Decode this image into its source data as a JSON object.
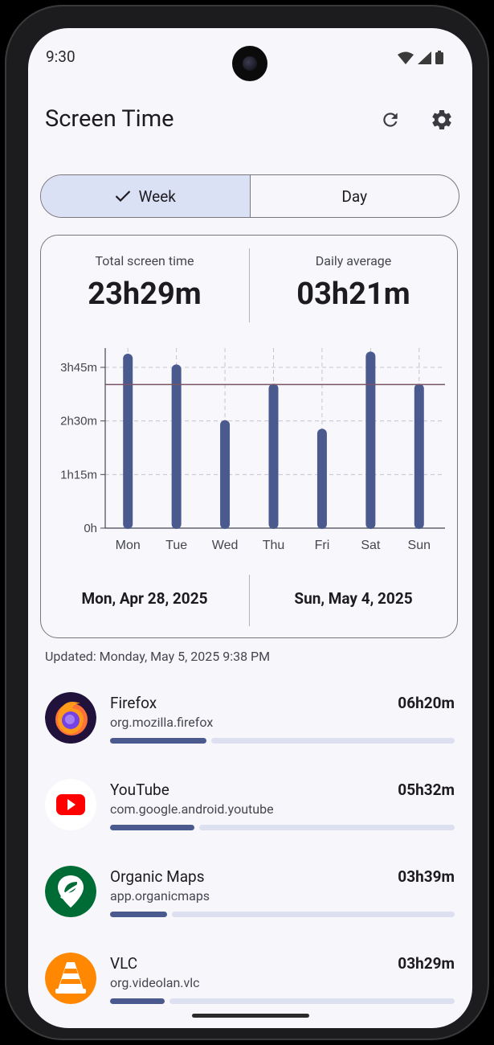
{
  "status": {
    "time": "9:30"
  },
  "appbar": {
    "title": "Screen Time",
    "refresh_icon": "refresh-icon",
    "settings_icon": "gear-icon"
  },
  "toggle": {
    "week_label": "Week",
    "day_label": "Day",
    "selected": "Week"
  },
  "summary": {
    "total_label": "Total screen time",
    "total_value": "23h29m",
    "avg_label": "Daily average",
    "avg_value": "03h21m",
    "start_date": "Mon, Apr 28, 2025",
    "end_date": "Sun, May 4, 2025"
  },
  "chart_data": {
    "type": "bar",
    "categories": [
      "Mon",
      "Tue",
      "Wed",
      "Thu",
      "Fri",
      "Sat",
      "Sun"
    ],
    "values": [
      4.05,
      3.8,
      2.5,
      3.35,
      2.3,
      4.1,
      3.35
    ],
    "average_line": 3.35,
    "ylim": [
      0,
      4.2
    ],
    "ytick_values": [
      0,
      1.25,
      2.5,
      3.75
    ],
    "ytick_labels": [
      "0h",
      "1h15m",
      "2h30m",
      "3h45m"
    ],
    "xlabel": "",
    "ylabel": "",
    "grid": true,
    "colors": {
      "bar": "#4a5a8f",
      "average_line": "#7a5563",
      "grid": "#c4c4cc"
    }
  },
  "updated_text": "Updated: Monday, May 5, 2025 9:38 PM",
  "apps": [
    {
      "name": "Firefox",
      "package": "org.mozilla.firefox",
      "time": "06h20m",
      "fraction": 0.28,
      "icon": "firefox-icon"
    },
    {
      "name": "YouTube",
      "package": "com.google.android.youtube",
      "time": "05h32m",
      "fraction": 0.245,
      "icon": "youtube-icon"
    },
    {
      "name": "Organic Maps",
      "package": "app.organicmaps",
      "time": "03h39m",
      "fraction": 0.165,
      "icon": "organic-maps-icon"
    },
    {
      "name": "VLC",
      "package": "org.videolan.vlc",
      "time": "03h29m",
      "fraction": 0.158,
      "icon": "vlc-icon"
    }
  ]
}
